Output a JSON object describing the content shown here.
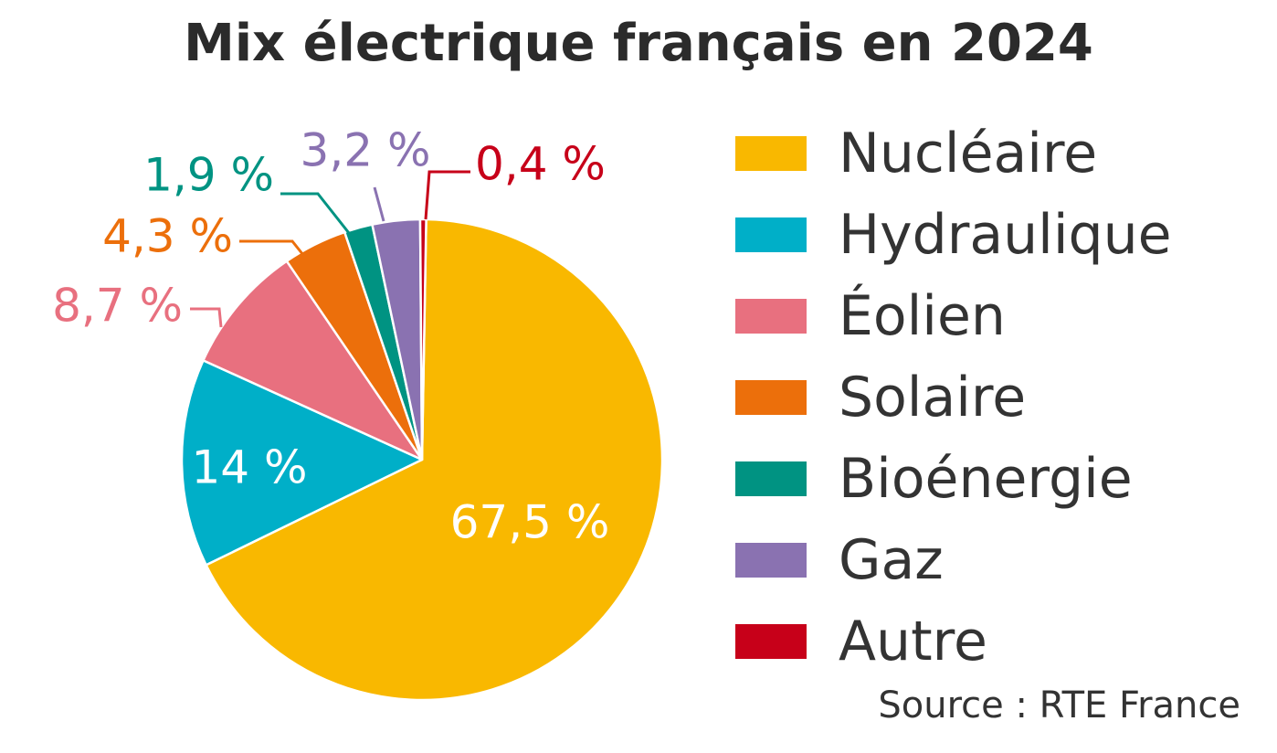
{
  "chart_data": {
    "type": "pie",
    "title": "Mix électrique français en 2024",
    "source": "Source : RTE France",
    "slices": [
      {
        "name": "Nucléaire",
        "value": 67.5,
        "label": "67,5 %",
        "color": "#F9B800"
      },
      {
        "name": "Hydraulique",
        "value": 14,
        "label": "14 %",
        "color": "#00AFC8"
      },
      {
        "name": "Éolien",
        "value": 8.7,
        "label": "8,7 %",
        "color": "#E8707F"
      },
      {
        "name": "Solaire",
        "value": 4.3,
        "label": "4,3 %",
        "color": "#EC6F0B"
      },
      {
        "name": "Bioénergie",
        "value": 1.9,
        "label": "1,9 %",
        "color": "#009382"
      },
      {
        "name": "Gaz",
        "value": 3.2,
        "label": "3,2 %",
        "color": "#8A72B1"
      },
      {
        "name": "Autre",
        "value": 0.4,
        "label": "0,4 %",
        "color": "#C70019"
      }
    ],
    "legend_position": "right"
  }
}
